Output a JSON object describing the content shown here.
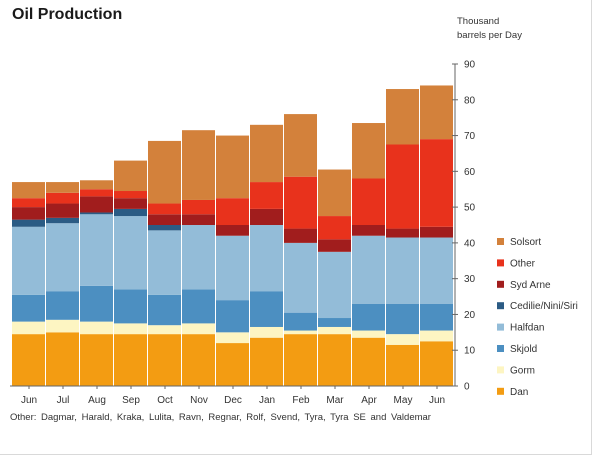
{
  "chart_data": {
    "type": "bar",
    "stacked": true,
    "title": "Oil Production",
    "ylabel_lines": [
      "Thousand",
      "barrels per Day"
    ],
    "ylim": [
      0,
      90
    ],
    "yticks": [
      0,
      10,
      20,
      30,
      40,
      50,
      60,
      70,
      80,
      90
    ],
    "y_axis_side": "right",
    "grid": false,
    "legend_position": "right",
    "categories": [
      "Jun",
      "Jul",
      "Aug",
      "Sep",
      "Oct",
      "Nov",
      "Dec",
      "Jan",
      "Feb",
      "Mar",
      "Apr",
      "May",
      "Jun"
    ],
    "series": [
      {
        "name": "Dan",
        "color": "#f39c12",
        "values": [
          14.5,
          15.0,
          14.5,
          14.5,
          14.5,
          14.5,
          12.0,
          13.5,
          14.5,
          14.5,
          13.5,
          11.5,
          12.5
        ]
      },
      {
        "name": "Gorm",
        "color": "#fdf5c2",
        "values": [
          3.5,
          3.5,
          3.5,
          3.0,
          2.5,
          3.0,
          3.0,
          3.0,
          1.0,
          2.0,
          2.0,
          3.0,
          3.0
        ]
      },
      {
        "name": "Skjold",
        "color": "#4c8fc1",
        "values": [
          7.5,
          8.0,
          10.0,
          9.5,
          8.5,
          9.5,
          9.0,
          10.0,
          5.0,
          2.5,
          7.5,
          8.5,
          7.5
        ]
      },
      {
        "name": "Halfdan",
        "color": "#93bcd8",
        "values": [
          19.0,
          19.0,
          20.0,
          20.5,
          18.0,
          18.0,
          18.0,
          18.5,
          19.5,
          18.5,
          19.0,
          18.5,
          18.5
        ]
      },
      {
        "name": "Cedilie/Nini/Siri",
        "color": "#2b5b84",
        "values": [
          2.0,
          1.5,
          0.5,
          2.0,
          1.5,
          0.0,
          0.0,
          0.0,
          0.0,
          0.0,
          0.0,
          0.0,
          0.0
        ]
      },
      {
        "name": "Syd Arne",
        "color": "#a11d1d",
        "values": [
          3.5,
          4.0,
          4.5,
          3.0,
          3.0,
          3.0,
          3.0,
          4.5,
          4.0,
          3.5,
          3.0,
          2.5,
          3.0
        ]
      },
      {
        "name": "Other",
        "color": "#e8321c",
        "values": [
          2.5,
          3.0,
          2.0,
          2.0,
          3.0,
          4.0,
          7.5,
          7.5,
          14.5,
          6.5,
          13.0,
          23.5,
          24.5
        ]
      },
      {
        "name": "Solsort",
        "color": "#d3813b",
        "values": [
          4.5,
          3.0,
          2.5,
          8.5,
          17.5,
          19.5,
          17.5,
          16.0,
          17.5,
          13.0,
          15.5,
          15.5,
          15.0
        ]
      }
    ]
  },
  "footnote": "Other:  Dagmar, Harald, Kraka, Lulita, Ravn, Regnar, Rolf, Svend, Tyra, Tyra SE and Valdemar"
}
